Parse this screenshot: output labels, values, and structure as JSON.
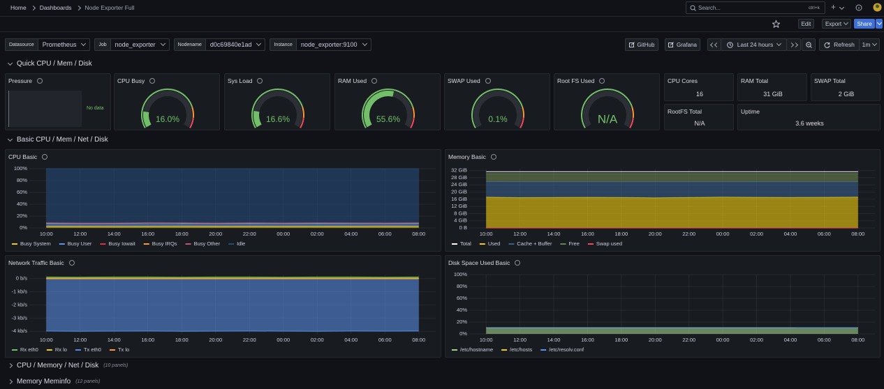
{
  "topbar": {
    "breadcrumbs": [
      "Home",
      "Dashboards",
      "Node Exporter Full"
    ],
    "search_placeholder": "Search...",
    "shortcut": "ctrl+k",
    "new_button": "+"
  },
  "toolbar": {
    "edit": "Edit",
    "export": "Export",
    "share": "Share"
  },
  "variables": [
    {
      "label": "Datasource",
      "value": "Prometheus"
    },
    {
      "label": "Job",
      "value": "node_exporter"
    },
    {
      "label": "Nodename",
      "value": "d0c69840e1ad"
    },
    {
      "label": "Instance",
      "value": "node_exporter:9100"
    }
  ],
  "links": [
    "GitHub",
    "Grafana"
  ],
  "time_picker": {
    "range": "Last 24 hours",
    "refresh": "Refresh",
    "interval": "1m"
  },
  "rows": [
    {
      "title": "Quick CPU / Mem / Disk"
    },
    {
      "title": "Basic CPU / Mem / Net / Disk"
    },
    {
      "title": "CPU / Memory / Net / Disk",
      "note": "(10 panels)"
    },
    {
      "title": "Memory Meminfo",
      "note": "(12 panels)"
    }
  ],
  "pressure": {
    "title": "Pressure",
    "message": "No data"
  },
  "gauges": {
    "range": [
      0,
      100
    ],
    "thresholds": [
      {
        "value": 0,
        "color": "#73bf69"
      },
      {
        "value": 80,
        "color": "#ff9830"
      },
      {
        "value": 90,
        "color": "#f2495c"
      }
    ],
    "items": [
      {
        "title": "CPU Busy",
        "value": 16.0,
        "label": "16.0%"
      },
      {
        "title": "Sys Load",
        "value": 16.6,
        "label": "16.6%"
      },
      {
        "title": "RAM Used",
        "value": 55.6,
        "label": "55.6%"
      },
      {
        "title": "SWAP Used",
        "value": 0.1,
        "label": "0.1%"
      },
      {
        "title": "Root FS Used",
        "value": null,
        "label": "N/A"
      }
    ]
  },
  "stats": [
    {
      "title": "CPU Cores",
      "value": 16
    },
    {
      "title": "RAM Total",
      "value": "31 GiB"
    },
    {
      "title": "SWAP Total",
      "value": "2 GiB"
    },
    {
      "title": "RootFS Total",
      "value": "N/A"
    },
    {
      "title": "Uptime",
      "value": "3.6 weeks"
    }
  ],
  "charts": [
    {
      "type": "area",
      "title": "CPU Basic",
      "stacked": true,
      "x": [
        "10:00",
        "12:00",
        "14:00",
        "16:00",
        "18:00",
        "20:00",
        "22:00",
        "00:00",
        "02:00",
        "04:00",
        "06:00",
        "08:00"
      ],
      "ylim": [
        0,
        100
      ],
      "yticks": [
        {
          "value": 0,
          "label": "0%"
        },
        {
          "value": 20,
          "label": "20%"
        },
        {
          "value": 40,
          "label": "40%"
        },
        {
          "value": 60,
          "label": "60%"
        },
        {
          "value": 80,
          "label": "80%"
        },
        {
          "value": 100,
          "label": "100%"
        }
      ],
      "series": [
        {
          "name": "Busy System",
          "color": "#f2cc0c",
          "fill": true,
          "values": [
            3,
            3,
            2.8,
            3,
            3.1,
            2.9,
            3,
            3,
            2.9,
            3,
            3.1,
            3
          ]
        },
        {
          "name": "Busy User",
          "color": "#5794f2",
          "fill": true,
          "values": [
            5,
            4.6,
            4.8,
            5.2,
            4.9,
            4.7,
            5,
            4.8,
            5.1,
            4.9,
            4.7,
            5
          ]
        },
        {
          "name": "Busy Iowait",
          "color": "#e02f44",
          "fill": true,
          "values": [
            0.2,
            0.2,
            0.2,
            0.2,
            0.2,
            0.2,
            0.2,
            0.2,
            0.2,
            0.2,
            0.2,
            0.2
          ]
        },
        {
          "name": "Busy IRQs",
          "color": "#ff9830",
          "fill": true,
          "values": [
            0.1,
            0.1,
            0.1,
            0.1,
            0.1,
            0.1,
            0.1,
            0.1,
            0.1,
            0.1,
            0.1,
            0.1
          ]
        },
        {
          "name": "Busy Other",
          "color": "#c4517a",
          "fill": true,
          "values": [
            0.5,
            0.5,
            0.5,
            0.5,
            0.5,
            0.5,
            0.5,
            0.5,
            0.5,
            0.5,
            0.5,
            0.5
          ]
        },
        {
          "name": "Idle",
          "color": "#244a79",
          "fill": true,
          "values": [
            91.2,
            91.6,
            91.6,
            91.0,
            91.2,
            91.6,
            91.2,
            91.4,
            91.2,
            91.3,
            91.4,
            91.2
          ]
        }
      ]
    },
    {
      "type": "area",
      "title": "Memory Basic",
      "stacked": true,
      "x": [
        "10:00",
        "12:00",
        "14:00",
        "16:00",
        "18:00",
        "20:00",
        "22:00",
        "00:00",
        "02:00",
        "04:00",
        "06:00",
        "08:00"
      ],
      "ylim": [
        0,
        33
      ],
      "yticks": [
        {
          "value": 0,
          "label": "0 B"
        },
        {
          "value": 4,
          "label": "4 GiB"
        },
        {
          "value": 8,
          "label": "8 GiB"
        },
        {
          "value": 12,
          "label": "12 GiB"
        },
        {
          "value": 16,
          "label": "16 GiB"
        },
        {
          "value": 20,
          "label": "20 GiB"
        },
        {
          "value": 24,
          "label": "24 GiB"
        },
        {
          "value": 28,
          "label": "28 GiB"
        },
        {
          "value": 32,
          "label": "32 GiB"
        }
      ],
      "series": [
        {
          "name": "Total",
          "color": "#ffffff",
          "fill": false,
          "values": [
            31.3,
            31.3,
            31.3,
            31.3,
            31.3,
            31.3,
            31.3,
            31.3,
            31.3,
            31.3,
            31.3,
            31.3
          ]
        },
        {
          "name": "Used",
          "color": "#f2cc0c",
          "fill": true,
          "values": [
            17.2,
            16.9,
            17,
            17.1,
            17,
            16.8,
            17,
            17.2,
            17.1,
            17,
            17.1,
            17.2
          ]
        },
        {
          "name": "Cache + Buffer",
          "color": "#3a5f8a",
          "fill": true,
          "values": [
            8.6,
            8.8,
            8.7,
            8.6,
            8.7,
            8.9,
            8.7,
            8.5,
            8.6,
            8.7,
            8.6,
            8.5
          ]
        },
        {
          "name": "Free",
          "color": "#6b844f",
          "fill": true,
          "values": [
            4.5,
            4.6,
            4.6,
            4.6,
            4.6,
            4.6,
            4.6,
            4.6,
            4.6,
            4.6,
            4.6,
            4.6
          ]
        },
        {
          "name": "Swap used",
          "color": "#f2495c",
          "fill": false,
          "values": [
            0,
            0,
            0,
            0,
            0,
            0,
            0,
            0,
            0,
            0,
            0,
            0
          ]
        }
      ]
    },
    {
      "type": "area",
      "title": "Network Traffic Basic",
      "stacked": false,
      "x": [
        "10:00",
        "12:00",
        "14:00",
        "16:00",
        "18:00",
        "20:00",
        "22:00",
        "00:00",
        "02:00",
        "04:00",
        "06:00",
        "08:00"
      ],
      "ylim": [
        -4.2,
        0.3
      ],
      "yticks": [
        {
          "value": 0,
          "label": "0 b/s"
        },
        {
          "value": -1,
          "label": "-1 kb/s"
        },
        {
          "value": -2,
          "label": "-2 kb/s"
        },
        {
          "value": -3,
          "label": "-3 kb/s"
        },
        {
          "value": -4,
          "label": "-4 kb/s"
        }
      ],
      "series": [
        {
          "name": "Rx eth0",
          "color": "#73bf69",
          "fill": true,
          "values": [
            0.12,
            0.11,
            0.12,
            0.12,
            0.11,
            0.12,
            0.12,
            0.11,
            0.12,
            0.12,
            0.11,
            0.12
          ]
        },
        {
          "name": "Rx lo",
          "color": "#f2cc0c",
          "fill": true,
          "values": [
            0.02,
            0.02,
            0.02,
            0.02,
            0.02,
            0.02,
            0.02,
            0.02,
            0.02,
            0.02,
            0.02,
            0.02
          ]
        },
        {
          "name": "Tx eth0",
          "color": "#568bdf",
          "fill": true,
          "values": [
            -3.98,
            -4.0,
            -3.99,
            -3.98,
            -4.0,
            -3.99,
            -3.98,
            -3.99,
            -4.0,
            -3.98,
            -3.99,
            -3.98
          ]
        },
        {
          "name": "Tx lo",
          "color": "#ff9830",
          "fill": true,
          "values": [
            -0.02,
            -0.02,
            -0.02,
            -0.02,
            -0.02,
            -0.02,
            -0.02,
            -0.02,
            -0.02,
            -0.02,
            -0.02,
            -0.02
          ]
        }
      ]
    },
    {
      "type": "area",
      "title": "Disk Space Used Basic",
      "stacked": false,
      "x": [
        "10:00",
        "12:00",
        "14:00",
        "16:00",
        "18:00",
        "20:00",
        "22:00",
        "00:00",
        "02:00",
        "04:00",
        "06:00",
        "08:00"
      ],
      "ylim": [
        0,
        100
      ],
      "yticks": [
        {
          "value": 0,
          "label": "0%"
        },
        {
          "value": 20,
          "label": "20%"
        },
        {
          "value": 40,
          "label": "40%"
        },
        {
          "value": 60,
          "label": "60%"
        },
        {
          "value": 80,
          "label": "80%"
        },
        {
          "value": 100,
          "label": "100%"
        }
      ],
      "series": [
        {
          "name": "/etc/hostname",
          "color": "#9fd08a",
          "fill": true,
          "values": [
            10.4,
            10.4,
            10.4,
            10.4,
            10.5,
            10.5,
            10.5,
            10.5,
            10.5,
            10.5,
            10.6,
            10.6
          ]
        },
        {
          "name": "/etc/hosts",
          "color": "#f2cc0c",
          "fill": false,
          "values": [
            10.4,
            10.4,
            10.4,
            10.4,
            10.5,
            10.5,
            10.5,
            10.5,
            10.5,
            10.5,
            10.6,
            10.6
          ]
        },
        {
          "name": "/etc/resolv.conf",
          "color": "#5794f2",
          "fill": false,
          "values": [
            10.4,
            10.4,
            10.4,
            10.4,
            10.5,
            10.5,
            10.5,
            10.5,
            10.5,
            10.5,
            10.6,
            10.6
          ]
        }
      ]
    }
  ]
}
